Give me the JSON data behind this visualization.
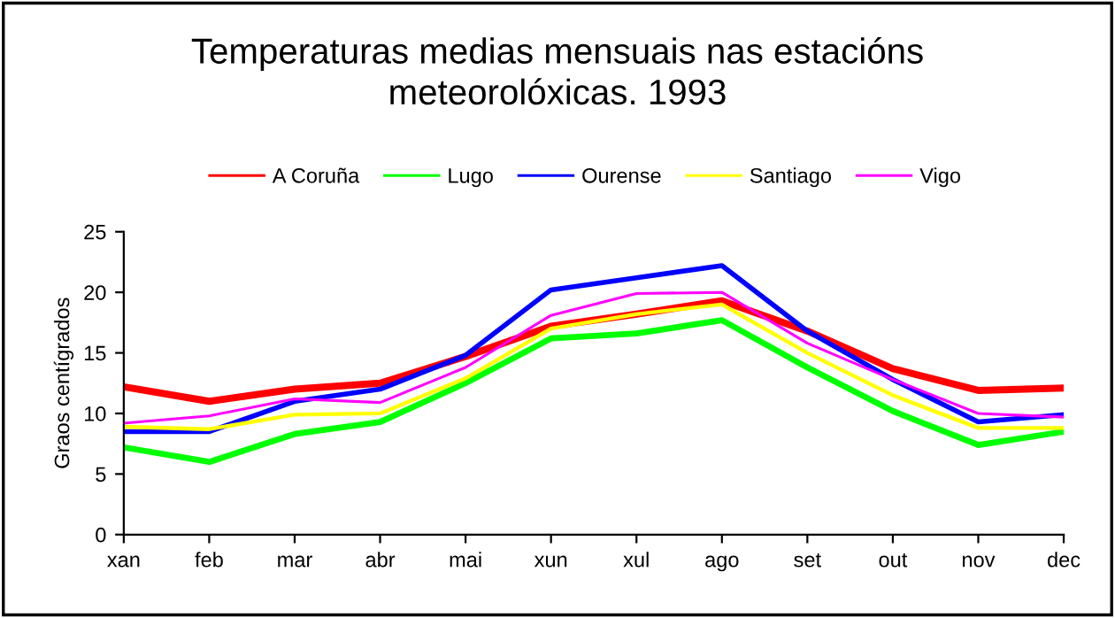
{
  "chart_data": {
    "type": "line",
    "title": "Temperaturas medias mensuais nas estacións\nmeteorolóxicas. 1993",
    "ylabel": "Graos centígrados",
    "categories": [
      "xan",
      "feb",
      "mar",
      "abr",
      "mai",
      "xun",
      "xul",
      "ago",
      "set",
      "out",
      "nov",
      "dec"
    ],
    "series": [
      {
        "name": "A Coruña",
        "color": "#ff0000",
        "values": [
          12.2,
          11.0,
          12.0,
          12.5,
          14.7,
          17.2,
          18.2,
          19.3,
          16.8,
          13.7,
          11.9,
          12.1
        ]
      },
      {
        "name": "Lugo",
        "color": "#00ff00",
        "values": [
          7.2,
          6.0,
          8.3,
          9.3,
          12.5,
          16.2,
          16.6,
          17.7,
          13.8,
          10.2,
          7.4,
          8.5
        ]
      },
      {
        "name": "Ourense",
        "color": "#0000ff",
        "values": [
          8.5,
          8.5,
          11.0,
          12.0,
          14.8,
          20.2,
          21.2,
          22.2,
          16.8,
          12.8,
          9.3,
          9.9
        ]
      },
      {
        "name": "Santiago",
        "color": "#ffff00",
        "values": [
          8.9,
          8.7,
          9.9,
          10.0,
          12.9,
          17.0,
          18.2,
          19.0,
          15.0,
          11.5,
          8.8,
          8.8
        ]
      },
      {
        "name": "Vigo",
        "color": "#ff00ff",
        "values": [
          9.2,
          9.8,
          11.2,
          10.9,
          13.8,
          18.1,
          19.9,
          20.0,
          15.8,
          12.8,
          10.0,
          9.7
        ]
      }
    ],
    "ylim": [
      0,
      25
    ],
    "yticks": [
      0,
      5,
      10,
      15,
      20,
      25
    ],
    "grid": false,
    "legend": "top",
    "marker": "none",
    "line_style": "solid"
  }
}
